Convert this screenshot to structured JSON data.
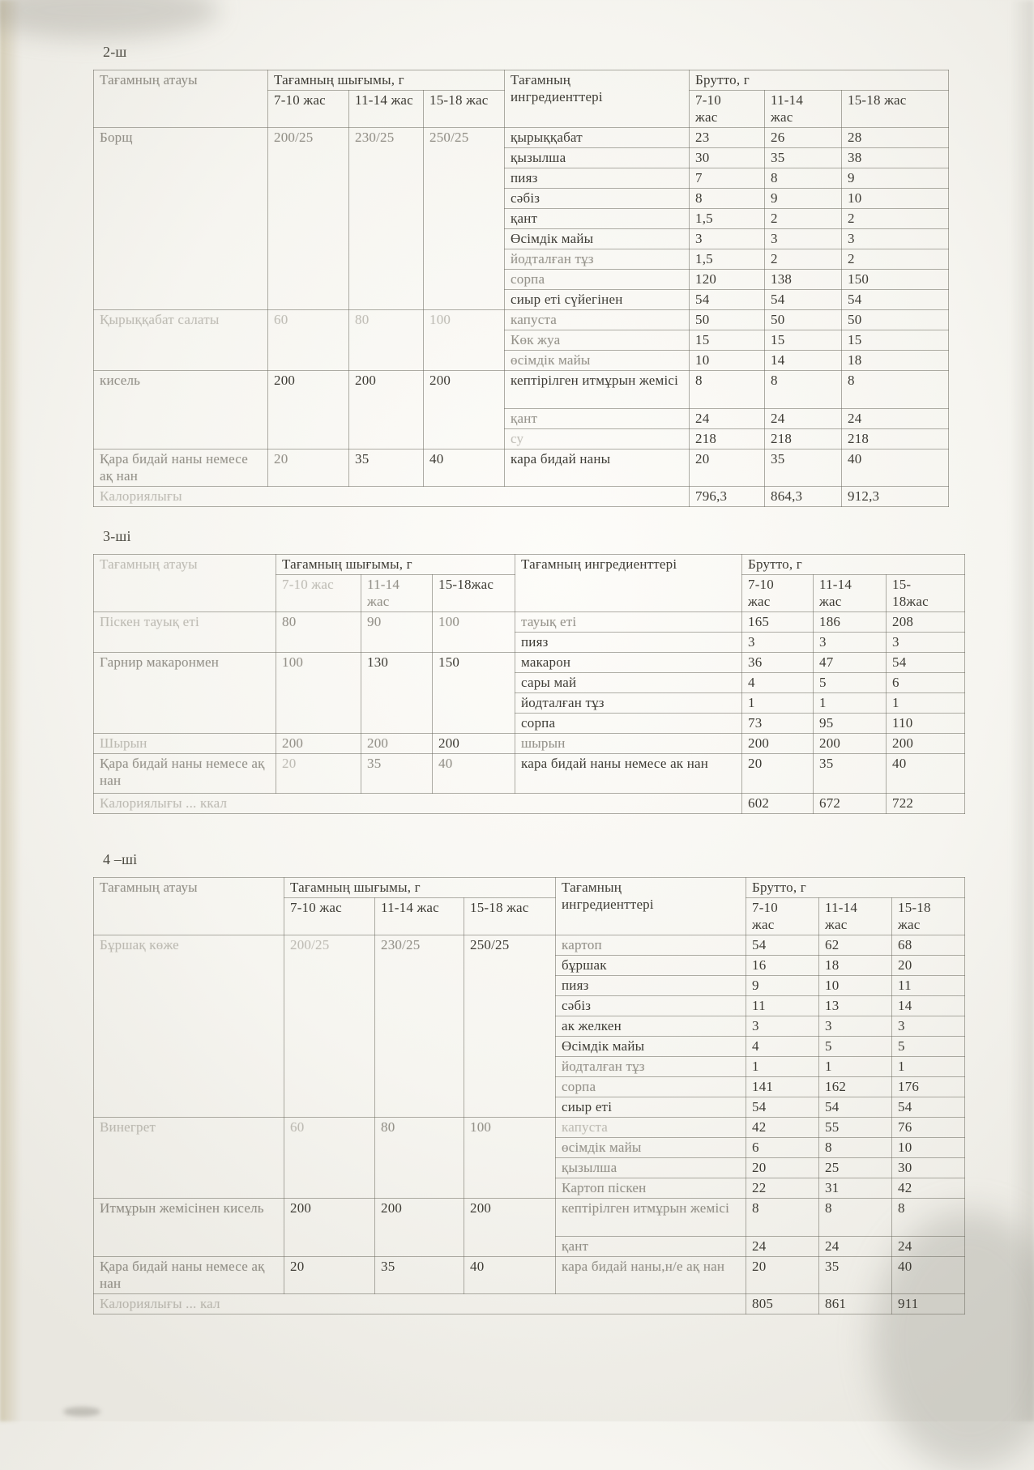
{
  "tables": [
    {
      "day_label": "2-ш",
      "headers": {
        "dish": "Тағамның атауы",
        "dish_fade": 1,
        "yield": "Тағамның шығымы, г",
        "ages": [
          {
            "t": "7-10 жас",
            "f": 0
          },
          {
            "t": "11-14 жас",
            "f": 0
          },
          {
            "t": "15-18 жас",
            "f": 0
          }
        ],
        "ingredients": "Тағамның\nингредиенттері",
        "brutto": "Брутто, г",
        "brutto_ages": [
          {
            "t": "7-10\nжас",
            "f": 0
          },
          {
            "t": "11-14\nжас",
            "f": 0
          },
          {
            "t": "15-18 жас",
            "f": 0
          }
        ]
      },
      "dishes": [
        {
          "name": "Борщ",
          "f": 1,
          "yields": [
            {
              "t": "200/25",
              "f": 1
            },
            {
              "t": "230/25",
              "f": 1
            },
            {
              "t": "250/25",
              "f": 1
            }
          ],
          "rows": [
            {
              "name": "қырыққабат",
              "f": 0,
              "brutto": [
                "23",
                "26",
                "28"
              ]
            },
            {
              "name": "қызылша",
              "f": 0,
              "brutto": [
                "30",
                "35",
                "38"
              ]
            },
            {
              "name": "пияз",
              "f": 0,
              "brutto": [
                "7",
                "8",
                "9"
              ]
            },
            {
              "name": "сәбіз",
              "f": 0,
              "brutto": [
                "8",
                "9",
                "10"
              ]
            },
            {
              "name": "қант",
              "f": 0,
              "brutto": [
                "1,5",
                "2",
                "2"
              ]
            },
            {
              "name": "Өсімдік майы",
              "f": 0,
              "brutto": [
                "3",
                "3",
                "3"
              ]
            },
            {
              "name": "йодталған тұз",
              "f": 1,
              "brutto": [
                "1,5",
                "2",
                "2"
              ]
            },
            {
              "name": "сорпа",
              "f": 1,
              "brutto": [
                "120",
                "138",
                "150"
              ]
            },
            {
              "name": "сиыр еті сүйегінен",
              "f": 0,
              "brutto": [
                "54",
                "54",
                "54"
              ]
            }
          ]
        },
        {
          "name": "Қырыққабат салаты",
          "f": 2,
          "yields": [
            {
              "t": "60",
              "f": 2
            },
            {
              "t": "80",
              "f": 2
            },
            {
              "t": "100",
              "f": 2
            }
          ],
          "rows": [
            {
              "name": "капуста",
              "f": 1,
              "brutto": [
                "50",
                "50",
                "50"
              ]
            },
            {
              "name": "Көк жуа",
              "f": 1,
              "brutto": [
                "15",
                "15",
                "15"
              ]
            },
            {
              "name": "өсімдік майы",
              "f": 1,
              "brutto": [
                "10",
                "14",
                "18"
              ]
            }
          ]
        },
        {
          "name": "кисель",
          "f": 1,
          "yields": [
            {
              "t": "200",
              "f": 0
            },
            {
              "t": "200",
              "f": 0
            },
            {
              "t": "200",
              "f": 0
            }
          ],
          "rows": [
            {
              "name": "кептірілген итмұрын жемісі",
              "f": 0,
              "pb": 24,
              "brutto": [
                "8",
                "8",
                "8"
              ]
            },
            {
              "name": "қант",
              "f": 1,
              "brutto": [
                "24",
                "24",
                "24"
              ]
            },
            {
              "name": "су",
              "f": 2,
              "brutto": [
                "218",
                "218",
                "218"
              ]
            }
          ]
        },
        {
          "name": "Қара бидай наны немесе ақ нан",
          "f": 1,
          "yields": [
            {
              "t": "20",
              "f": 1
            },
            {
              "t": "35",
              "f": 0
            },
            {
              "t": "40",
              "f": 0
            }
          ],
          "rows": [
            {
              "name": "кара бидай наны",
              "f": 0,
              "pb": 6,
              "brutto": [
                "20",
                "35",
                "40"
              ]
            }
          ]
        }
      ],
      "totals": {
        "label": "Калориялығы",
        "label_fade": 2,
        "values": [
          "796,3",
          "864,3",
          "912,3"
        ]
      }
    },
    {
      "day_label": "3-ші",
      "headers": {
        "dish": "Тағамның атауы",
        "dish_fade": 2,
        "yield": "Тағамның шығымы, г",
        "ages": [
          {
            "t": "7-10 жас",
            "f": 2
          },
          {
            "t": "11-14\nжас",
            "f": 1
          },
          {
            "t": "15-18жас",
            "f": 0
          }
        ],
        "ingredients": "Тағамның ингредиенттері",
        "brutto": "Брутто, г",
        "brutto_ages": [
          {
            "t": "7-10\nжас",
            "f": 0
          },
          {
            "t": "11-14\nжас",
            "f": 0
          },
          {
            "t": "15-\n18жас",
            "f": 0
          }
        ]
      },
      "dishes": [
        {
          "name": "Піскен тауық еті",
          "f": 2,
          "yields": [
            {
              "t": "80",
              "f": 1
            },
            {
              "t": "90",
              "f": 1
            },
            {
              "t": "100",
              "f": 1
            }
          ],
          "rows": [
            {
              "name": "тауық еті",
              "f": 1,
              "brutto": [
                "165",
                "186",
                "208"
              ]
            },
            {
              "name": "пияз",
              "f": 0,
              "brutto": [
                "3",
                "3",
                "3"
              ]
            }
          ]
        },
        {
          "name": "Гарнир макаронмен",
          "f": 1,
          "yields": [
            {
              "t": "100",
              "f": 1
            },
            {
              "t": "130",
              "f": 0
            },
            {
              "t": "150",
              "f": 0
            }
          ],
          "rows": [
            {
              "name": "макарон",
              "f": 0,
              "brutto": [
                "36",
                "47",
                "54"
              ]
            },
            {
              "name": "сары май",
              "f": 0,
              "brutto": [
                "4",
                "5",
                "6"
              ]
            },
            {
              "name": "йодталған тұз",
              "f": 0,
              "brutto": [
                "1",
                "1",
                "1"
              ]
            },
            {
              "name": "сорпа",
              "f": 0,
              "brutto": [
                "73",
                "95",
                "110"
              ]
            }
          ]
        },
        {
          "name": "Шырын",
          "f": 2,
          "yields": [
            {
              "t": "200",
              "f": 1
            },
            {
              "t": "200",
              "f": 1
            },
            {
              "t": "200",
              "f": 0
            }
          ],
          "rows": [
            {
              "name": "шырын",
              "f": 1,
              "brutto": [
                "200",
                "200",
                "200"
              ]
            }
          ]
        },
        {
          "name": "Қара бидай наны немесе ақ нан",
          "f": 1,
          "yields": [
            {
              "t": "20",
              "f": 2
            },
            {
              "t": "35",
              "f": 1
            },
            {
              "t": "40",
              "f": 1
            }
          ],
          "rows": [
            {
              "name": "кара бидай наны немесе ак нан",
              "f": 0,
              "pb": 26,
              "brutto": [
                "20",
                "35",
                "40"
              ]
            }
          ]
        }
      ],
      "totals": {
        "label": "Калориялығы ... ккал",
        "label_fade": 2,
        "values": [
          "602",
          "672",
          "722"
        ]
      }
    },
    {
      "day_label": "4 –ші",
      "headers": {
        "dish": "Тағамның атауы",
        "dish_fade": 1,
        "yield": "Тағамның шығымы, г",
        "ages": [
          {
            "t": "7-10 жас",
            "f": 0
          },
          {
            "t": "11-14 жас",
            "f": 0
          },
          {
            "t": "15-18 жас",
            "f": 0
          }
        ],
        "ingredients": "Тағамның\nингредиенттері",
        "brutto": "Брутто, г",
        "brutto_ages": [
          {
            "t": "7-10\nжас",
            "f": 0
          },
          {
            "t": "11-14\nжас",
            "f": 0
          },
          {
            "t": "15-18\nжас",
            "f": 0
          }
        ]
      },
      "dishes": [
        {
          "name": "Бұршақ көже",
          "f": 2,
          "yields": [
            {
              "t": "200/25",
              "f": 2
            },
            {
              "t": "230/25",
              "f": 1
            },
            {
              "t": "250/25",
              "f": 0
            }
          ],
          "rows": [
            {
              "name": "картоп",
              "f": 1,
              "brutto": [
                "54",
                "62",
                "68"
              ]
            },
            {
              "name": "бұршак",
              "f": 0,
              "brutto": [
                "16",
                "18",
                "20"
              ]
            },
            {
              "name": "пияз",
              "f": 0,
              "brutto": [
                "9",
                "10",
                "11"
              ]
            },
            {
              "name": "сәбіз",
              "f": 0,
              "brutto": [
                "11",
                "13",
                "14"
              ]
            },
            {
              "name": "ак желкен",
              "f": 0,
              "brutto": [
                "3",
                "3",
                "3"
              ]
            },
            {
              "name": "Өсімдік майы",
              "f": 0,
              "brutto": [
                "4",
                "5",
                "5"
              ]
            },
            {
              "name": "йодталған тұз",
              "f": 1,
              "brutto": [
                "1",
                "1",
                "1"
              ]
            },
            {
              "name": "сорпа",
              "f": 1,
              "brutto": [
                "141",
                "162",
                "176"
              ]
            },
            {
              "name": "сиыр еті",
              "f": 0,
              "brutto": [
                "54",
                "54",
                "54"
              ]
            }
          ]
        },
        {
          "name": "Винегрет",
          "f": 2,
          "yields": [
            {
              "t": "60",
              "f": 2
            },
            {
              "t": "80",
              "f": 1
            },
            {
              "t": "100",
              "f": 1
            }
          ],
          "rows": [
            {
              "name": "капуста",
              "f": 2,
              "brutto": [
                "42",
                "55",
                "76"
              ]
            },
            {
              "name": "өсімдік майы",
              "f": 1,
              "brutto": [
                "6",
                "8",
                "10"
              ]
            },
            {
              "name": "қызылша",
              "f": 1,
              "brutto": [
                "20",
                "25",
                "30"
              ]
            },
            {
              "name": "Картоп піскен",
              "f": 1,
              "brutto": [
                "22",
                "31",
                "42"
              ]
            }
          ]
        },
        {
          "name": "Итмұрын жемісінен кисель",
          "f": 1,
          "yields": [
            {
              "t": "200",
              "f": 0
            },
            {
              "t": "200",
              "f": 0
            },
            {
              "t": "200",
              "f": 0
            }
          ],
          "rows": [
            {
              "name": "кептірілген итмұрын жемісі",
              "f": 1,
              "pb": 24,
              "brutto": [
                "8",
                "8",
                "8"
              ]
            },
            {
              "name": "қант",
              "f": 1,
              "brutto": [
                "24",
                "24",
                "24"
              ]
            }
          ]
        },
        {
          "name": "Қара бидай наны немесе ақ нан",
          "f": 1,
          "yields": [
            {
              "t": "20",
              "f": 0
            },
            {
              "t": "35",
              "f": 0
            },
            {
              "t": "40",
              "f": 0
            }
          ],
          "rows": [
            {
              "name": "кара бидай наны,н/е ақ нан",
              "f": 1,
              "pb": 6,
              "brutto": [
                "20",
                "35",
                "40"
              ]
            }
          ]
        }
      ],
      "totals": {
        "label": "Калориялығы ... кал",
        "label_fade": 2,
        "values": [
          "805",
          "861",
          "911"
        ]
      }
    }
  ]
}
